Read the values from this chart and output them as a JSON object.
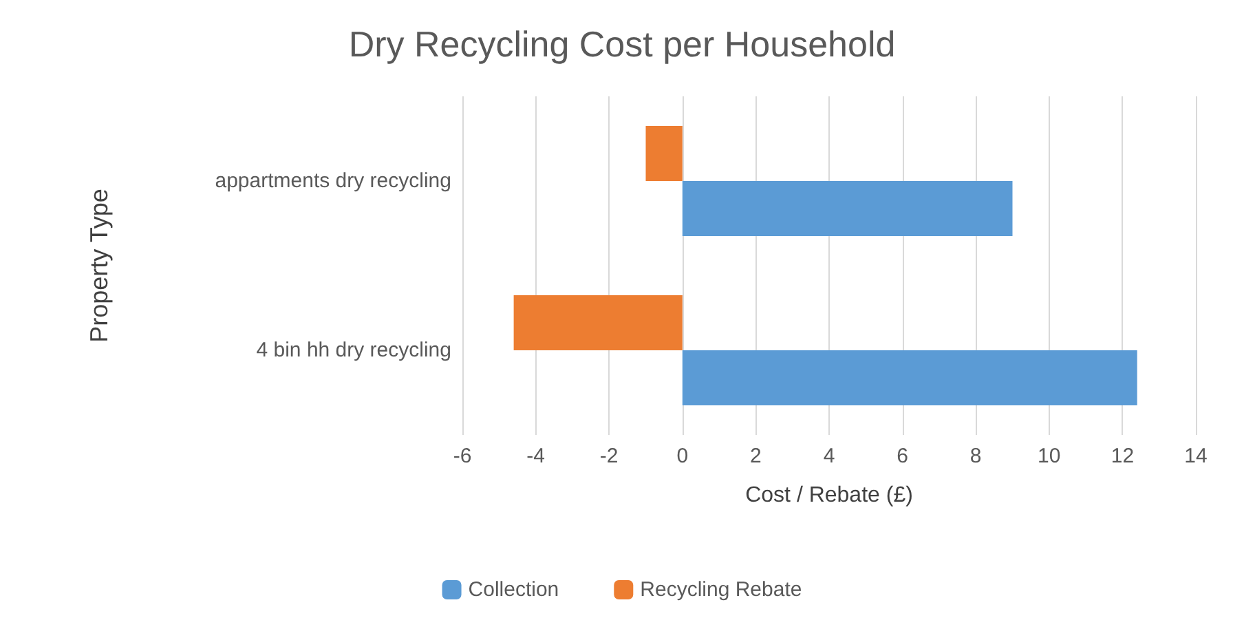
{
  "chart_data": {
    "type": "bar",
    "orientation": "horizontal",
    "title": "Dry Recycling Cost per Household",
    "xlabel": "Cost / Rebate (£)",
    "ylabel": "Property Type",
    "categories": [
      "appartments dry recycling",
      "4 bin hh dry recycling"
    ],
    "series": [
      {
        "name": "Collection",
        "color": "#5b9bd5",
        "values": [
          9.0,
          12.4
        ]
      },
      {
        "name": "Recycling Rebate",
        "color": "#ed7d31",
        "values": [
          -1.0,
          -4.6
        ]
      }
    ],
    "xlim": [
      -6,
      14
    ],
    "xticks": [
      -6,
      -4,
      -2,
      0,
      2,
      4,
      6,
      8,
      10,
      12,
      14
    ],
    "grid": "x",
    "legend": "bottom"
  }
}
